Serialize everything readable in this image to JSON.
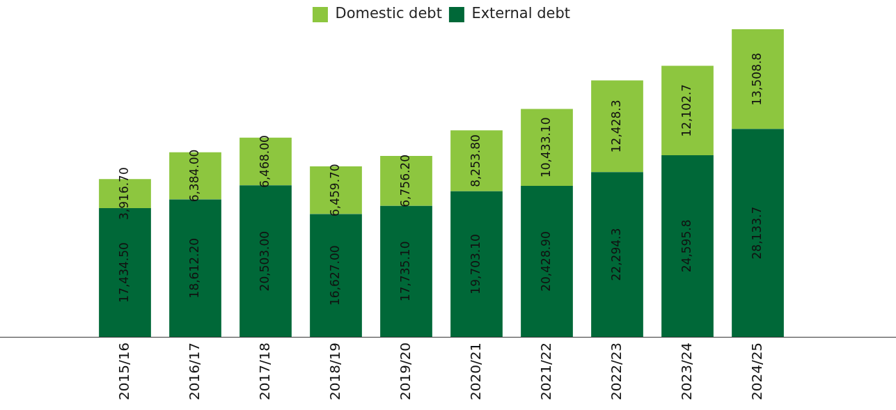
{
  "chart_data": {
    "type": "bar",
    "stacked": true,
    "legend": "top",
    "categories": [
      "2015/16",
      "2016/17",
      "2017/18",
      "2018/19",
      "2019/20",
      "2020/21",
      "2021/22",
      "2022/23",
      "2023/24",
      "2024/25"
    ],
    "series": [
      {
        "name": "External debt",
        "color": "#006838",
        "values": [
          17434.5,
          18612.2,
          20503,
          16627,
          17735.1,
          19703.1,
          20428.9,
          22294.3,
          24595.8,
          28133.7
        ],
        "value_labels": [
          "17,434.50",
          "18,612.20",
          "20,503.00",
          "16,627.00",
          "17,735.10",
          "19,703.10",
          "20,428.90",
          "22,294.3",
          "24,595.8",
          "28,133.7"
        ]
      },
      {
        "name": "Domestic debt",
        "color": "#8dc63f",
        "values": [
          3916.7,
          6384,
          6468,
          6459.7,
          6756.2,
          8253.8,
          10433.1,
          12428.3,
          12102.7,
          13508.8
        ],
        "value_labels": [
          "3,916.70",
          "6,384.00",
          "6,468.00",
          "6,459.70",
          "6,756.20",
          "8,253.80",
          "10,433.10",
          "12,428.3",
          "12,102.7",
          "13,508.8"
        ]
      }
    ]
  }
}
